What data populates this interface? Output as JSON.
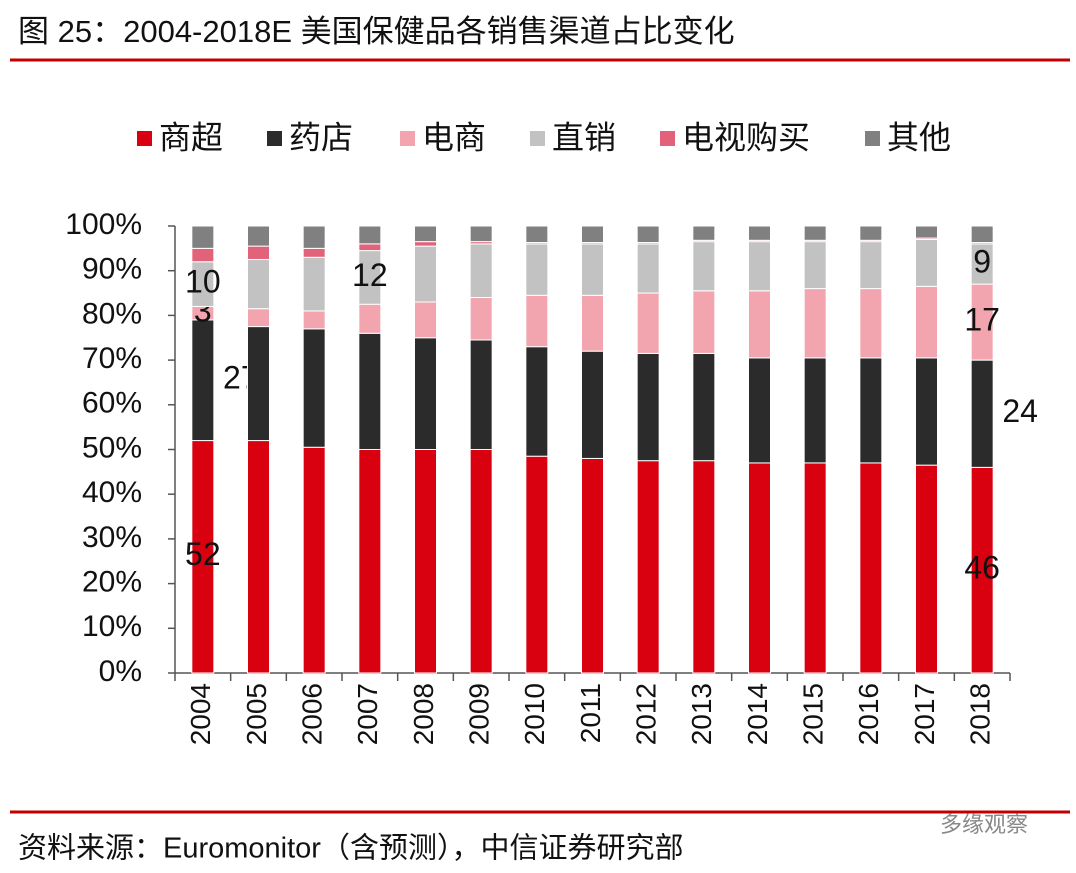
{
  "chart_data": {
    "type": "stacked_bar",
    "title": "图 25：2004-2018E 美国保健品各销售渠道占比变化",
    "source": "资料来源：Euromonitor（含预测），中信证券研究部",
    "watermark": "多缘观察",
    "categories": [
      "2004",
      "2005",
      "2006",
      "2007",
      "2008",
      "2009",
      "2010",
      "2011",
      "2012",
      "2013",
      "2014",
      "2015",
      "2016",
      "2017",
      "2018"
    ],
    "series": [
      {
        "name": "商超",
        "color": "#d9000f",
        "values": [
          52,
          52,
          50.5,
          50,
          50,
          50,
          48.5,
          48,
          47.5,
          47.5,
          47,
          47,
          47,
          46.5,
          46
        ],
        "value_labels": [
          "52",
          null,
          null,
          null,
          null,
          null,
          null,
          null,
          null,
          null,
          null,
          null,
          null,
          null,
          "46"
        ]
      },
      {
        "name": "药店",
        "color": "#2b2b2b",
        "values": [
          27,
          25.5,
          26.5,
          26,
          25,
          24.5,
          24.5,
          24,
          24,
          24,
          23.5,
          23.5,
          23.5,
          24,
          24
        ],
        "value_labels": [
          "27",
          null,
          null,
          null,
          null,
          null,
          null,
          null,
          null,
          null,
          null,
          null,
          null,
          null,
          "24"
        ]
      },
      {
        "name": "电商",
        "color": "#f2a5ae",
        "values": [
          3,
          4,
          4,
          6.5,
          8,
          9.5,
          11.5,
          12.5,
          13.5,
          14,
          15,
          15.5,
          15.5,
          16,
          17
        ],
        "value_labels": [
          "3",
          null,
          null,
          null,
          null,
          null,
          null,
          null,
          null,
          null,
          null,
          null,
          null,
          null,
          "17"
        ]
      },
      {
        "name": "直销",
        "color": "#c2c2c2",
        "values": [
          10,
          11,
          12,
          12,
          12.5,
          12,
          11.5,
          11.5,
          11,
          11,
          11,
          10.5,
          10.5,
          10.5,
          9
        ],
        "value_labels": [
          "10",
          null,
          null,
          "12",
          null,
          null,
          null,
          null,
          null,
          null,
          null,
          null,
          null,
          null,
          "9"
        ]
      },
      {
        "name": "电视购买",
        "color": "#e2627a",
        "values": [
          3,
          3,
          2,
          1.5,
          1,
          0.5,
          0.3,
          0.3,
          0.3,
          0.3,
          0.3,
          0.3,
          0.3,
          0.3,
          0.3
        ]
      },
      {
        "name": "其他",
        "color": "#808080",
        "values": [
          5,
          4.5,
          5,
          4,
          3.5,
          3.5,
          3.7,
          3.7,
          3.7,
          3.2,
          3.2,
          3.2,
          3.2,
          2.7,
          3.7
        ]
      }
    ],
    "ylim": [
      0,
      100
    ],
    "yticks": [
      {
        "value": 0,
        "label": "0%"
      },
      {
        "value": 10,
        "label": "10%"
      },
      {
        "value": 20,
        "label": "20%"
      },
      {
        "value": 30,
        "label": "30%"
      },
      {
        "value": 40,
        "label": "40%"
      },
      {
        "value": 50,
        "label": "50%"
      },
      {
        "value": 60,
        "label": "60%"
      },
      {
        "value": 70,
        "label": "70%"
      },
      {
        "value": 80,
        "label": "80%"
      },
      {
        "value": 90,
        "label": "90%"
      },
      {
        "value": 100,
        "label": "100%"
      }
    ]
  }
}
